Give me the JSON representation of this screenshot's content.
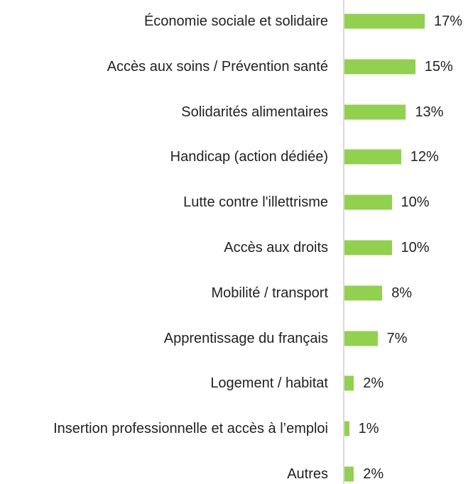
{
  "chart_data": {
    "type": "bar",
    "orientation": "horizontal",
    "color": "#92d050",
    "categories": [
      "Économie sociale et solidaire",
      "Accès aux soins / Prévention santé",
      "Solidarités alimentaires",
      "Handicap (action dédiée)",
      "Lutte contre l'illettrisme",
      "Accès aux droits",
      "Mobilité / transport",
      "Apprentissage du français",
      "Logement / habitat",
      "Insertion professionnelle et accès à l’emploi",
      "Autres"
    ],
    "values": [
      17,
      15,
      13,
      12,
      10,
      10,
      8,
      7,
      2,
      1,
      2
    ],
    "value_labels": [
      "17%",
      "15%",
      "13%",
      "12%",
      "10%",
      "10%",
      "8%",
      "7%",
      "2%",
      "1%",
      "2%"
    ]
  }
}
